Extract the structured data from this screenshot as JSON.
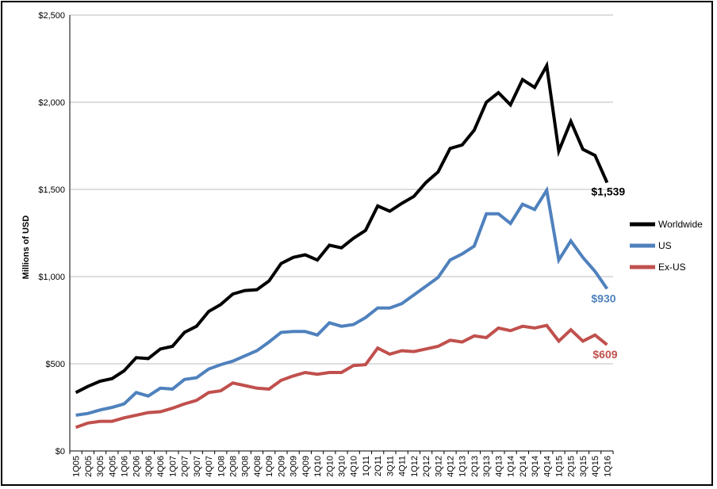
{
  "chart_data": {
    "type": "line",
    "title": "",
    "xlabel": "",
    "ylabel": "Millions of USD",
    "ylim": [
      0,
      2500
    ],
    "yticks": [
      0,
      500,
      1000,
      1500,
      2000,
      2500
    ],
    "ytick_labels": [
      "$0",
      "$500",
      "$1,000",
      "$1,500",
      "$2,000",
      "$2,500"
    ],
    "grid": true,
    "legend_position": "right",
    "categories": [
      "1Q05",
      "2Q05",
      "3Q05",
      "4Q05",
      "1Q06",
      "2Q06",
      "3Q06",
      "4Q06",
      "1Q07",
      "2Q07",
      "3Q07",
      "4Q07",
      "1Q08",
      "2Q08",
      "3Q08",
      "4Q08",
      "1Q09",
      "2Q09",
      "3Q09",
      "4Q09",
      "1Q10",
      "2Q10",
      "3Q10",
      "4Q10",
      "1Q11",
      "2Q11",
      "3Q11",
      "4Q11",
      "1Q12",
      "2Q12",
      "3Q12",
      "4Q12",
      "1Q13",
      "2Q13",
      "3Q13",
      "4Q13",
      "1Q14",
      "2Q14",
      "3Q14",
      "4Q14",
      "1Q15",
      "2Q15",
      "3Q15",
      "4Q15",
      "1Q16"
    ],
    "series": [
      {
        "name": "Worldwide",
        "color": "#000000",
        "values": [
          335,
          370,
          400,
          415,
          460,
          535,
          530,
          585,
          600,
          680,
          715,
          800,
          840,
          900,
          920,
          925,
          975,
          1075,
          1110,
          1125,
          1095,
          1180,
          1165,
          1220,
          1265,
          1405,
          1375,
          1420,
          1460,
          1540,
          1600,
          1735,
          1755,
          1840,
          2000,
          2055,
          1985,
          2130,
          2085,
          2210,
          1720,
          1890,
          1730,
          1695,
          1539
        ],
        "end_label": "$1,539",
        "end_label_color": "#000000"
      },
      {
        "name": "US",
        "color": "#4f81bd",
        "values": [
          205,
          215,
          235,
          250,
          270,
          335,
          315,
          360,
          355,
          410,
          420,
          470,
          495,
          515,
          545,
          575,
          625,
          680,
          685,
          685,
          665,
          735,
          715,
          725,
          765,
          820,
          820,
          845,
          895,
          945,
          995,
          1095,
          1130,
          1175,
          1360,
          1360,
          1305,
          1415,
          1385,
          1495,
          1095,
          1205,
          1110,
          1030,
          930
        ],
        "end_label": "$930",
        "end_label_color": "#4f81bd"
      },
      {
        "name": "Ex-US",
        "color": "#c0504d",
        "values": [
          135,
          160,
          170,
          170,
          190,
          205,
          220,
          225,
          245,
          270,
          290,
          335,
          345,
          390,
          375,
          360,
          355,
          405,
          430,
          450,
          440,
          450,
          450,
          490,
          495,
          590,
          555,
          575,
          570,
          585,
          600,
          635,
          625,
          660,
          650,
          705,
          690,
          715,
          705,
          720,
          630,
          695,
          630,
          665,
          609
        ],
        "end_label": "$609",
        "end_label_color": "#c0504d"
      }
    ]
  }
}
